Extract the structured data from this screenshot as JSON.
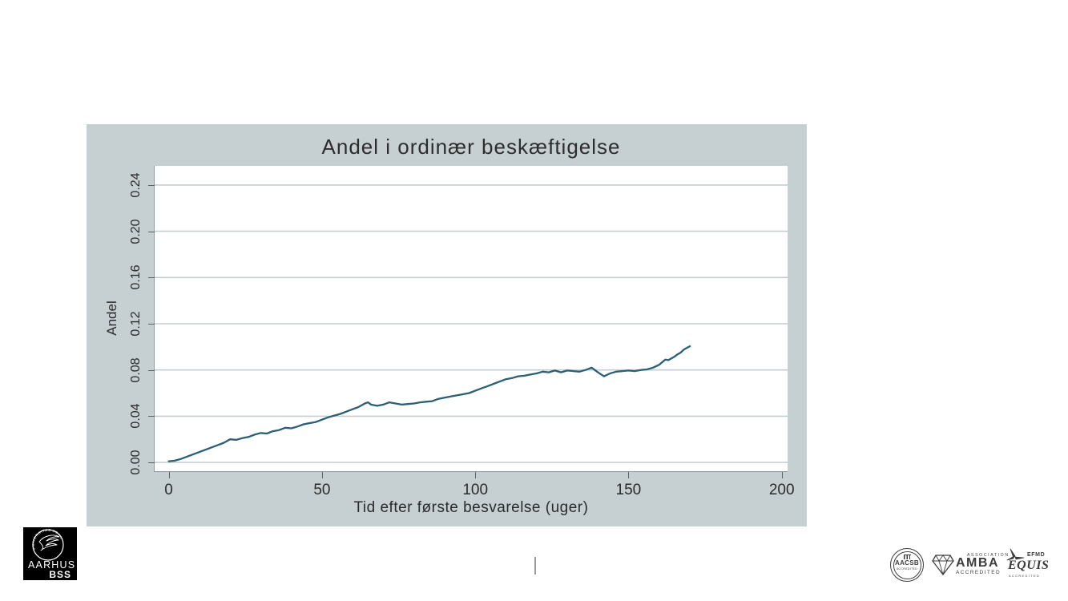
{
  "chart": {
    "title": "Andel i ordinær beskæftigelse",
    "xlabel": "Tid efter første besvarelse (uger)",
    "ylabel": "Andel"
  },
  "chart_data": {
    "type": "line",
    "title": "Andel i ordinær beskæftigelse",
    "xlabel": "Tid efter første besvarelse (uger)",
    "ylabel": "Andel",
    "xlim": [
      -4.6,
      201.9
    ],
    "ylim": [
      -0.0076,
      0.2566
    ],
    "grid": "horizontal-only",
    "legend": "none",
    "xticks": [
      {
        "value": 0,
        "label": "0"
      },
      {
        "value": 50,
        "label": "50"
      },
      {
        "value": 100,
        "label": "100"
      },
      {
        "value": 150,
        "label": "150"
      },
      {
        "value": 200,
        "label": "200"
      }
    ],
    "yticks": [
      {
        "value": 0.0,
        "label": "0.00"
      },
      {
        "value": 0.04,
        "label": "0.04"
      },
      {
        "value": 0.08,
        "label": "0.08"
      },
      {
        "value": 0.12,
        "label": "0.12"
      },
      {
        "value": 0.16,
        "label": "0.16"
      },
      {
        "value": 0.2,
        "label": "0.20"
      },
      {
        "value": 0.24,
        "label": "0.24"
      }
    ],
    "series": [
      {
        "name": "Andel i ordinær beskæftigelse",
        "points": [
          [
            0,
            0.001
          ],
          [
            2,
            0.0015
          ],
          [
            4,
            0.003
          ],
          [
            6,
            0.005
          ],
          [
            8,
            0.007
          ],
          [
            10,
            0.009
          ],
          [
            12,
            0.011
          ],
          [
            14,
            0.013
          ],
          [
            16,
            0.015
          ],
          [
            18,
            0.017
          ],
          [
            20,
            0.02
          ],
          [
            22,
            0.0195
          ],
          [
            24,
            0.021
          ],
          [
            26,
            0.022
          ],
          [
            28,
            0.024
          ],
          [
            30,
            0.0255
          ],
          [
            32,
            0.025
          ],
          [
            34,
            0.027
          ],
          [
            36,
            0.028
          ],
          [
            38,
            0.03
          ],
          [
            40,
            0.0295
          ],
          [
            42,
            0.031
          ],
          [
            44,
            0.033
          ],
          [
            46,
            0.034
          ],
          [
            48,
            0.035
          ],
          [
            50,
            0.037
          ],
          [
            52,
            0.039
          ],
          [
            54,
            0.0405
          ],
          [
            56,
            0.042
          ],
          [
            58,
            0.044
          ],
          [
            60,
            0.046
          ],
          [
            62,
            0.048
          ],
          [
            64,
            0.051
          ],
          [
            65,
            0.052
          ],
          [
            66,
            0.05
          ],
          [
            68,
            0.049
          ],
          [
            70,
            0.05
          ],
          [
            72,
            0.052
          ],
          [
            74,
            0.051
          ],
          [
            76,
            0.05
          ],
          [
            78,
            0.0505
          ],
          [
            80,
            0.051
          ],
          [
            82,
            0.052
          ],
          [
            84,
            0.0525
          ],
          [
            86,
            0.053
          ],
          [
            88,
            0.055
          ],
          [
            90,
            0.056
          ],
          [
            92,
            0.057
          ],
          [
            94,
            0.058
          ],
          [
            96,
            0.059
          ],
          [
            98,
            0.06
          ],
          [
            100,
            0.062
          ],
          [
            102,
            0.064
          ],
          [
            104,
            0.066
          ],
          [
            106,
            0.068
          ],
          [
            108,
            0.07
          ],
          [
            110,
            0.072
          ],
          [
            112,
            0.073
          ],
          [
            114,
            0.0745
          ],
          [
            116,
            0.075
          ],
          [
            118,
            0.076
          ],
          [
            120,
            0.077
          ],
          [
            122,
            0.0785
          ],
          [
            124,
            0.078
          ],
          [
            126,
            0.0795
          ],
          [
            128,
            0.078
          ],
          [
            130,
            0.0795
          ],
          [
            132,
            0.079
          ],
          [
            134,
            0.0785
          ],
          [
            136,
            0.08
          ],
          [
            138,
            0.082
          ],
          [
            140,
            0.078
          ],
          [
            142,
            0.0745
          ],
          [
            144,
            0.077
          ],
          [
            146,
            0.0785
          ],
          [
            148,
            0.079
          ],
          [
            150,
            0.0795
          ],
          [
            152,
            0.079
          ],
          [
            154,
            0.08
          ],
          [
            156,
            0.0805
          ],
          [
            158,
            0.082
          ],
          [
            160,
            0.0845
          ],
          [
            162,
            0.089
          ],
          [
            163,
            0.0885
          ],
          [
            164,
            0.09
          ],
          [
            165,
            0.0915
          ],
          [
            166,
            0.0935
          ],
          [
            167,
            0.095
          ],
          [
            168,
            0.0975
          ],
          [
            169,
            0.099
          ],
          [
            170,
            0.1005
          ]
        ]
      }
    ],
    "colors": {
      "line": "#2a5f74",
      "chart_background": "#c6d0d3",
      "plot_background": "#ffffff",
      "gridline": "#c3ced1",
      "axis_line": "#8e9c9f",
      "text": "#2b2b2b"
    }
  },
  "logos": {
    "aarhus": {
      "seal_text": "UNIVERSITAS ARHUSIENSIS",
      "name": "AARHUS",
      "unit": "BSS",
      "background": "#000000"
    },
    "aacsb": {
      "name": "AACSB",
      "accredited": "ACCREDITED"
    },
    "amba": {
      "association": "ASSOCIATION",
      "name": "AMBA",
      "accredited": "ACCREDITED"
    },
    "equis": {
      "efmd": "EFMD",
      "name": "EQUIS",
      "accredited": "ACCREDITED"
    }
  }
}
